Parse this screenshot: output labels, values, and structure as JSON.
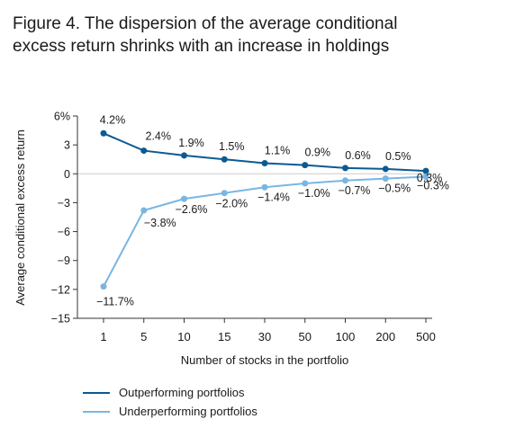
{
  "title_line1": "Figure 4. The dispersion of the average conditional",
  "title_line2": "excess return shrinks with an increase in holdings",
  "colors": {
    "outperforming": "#0b5a94",
    "underperforming": "#7ab6e2",
    "axis": "#333333",
    "zero": "#cccccc"
  },
  "chart_data": {
    "type": "line",
    "title": "Figure 4. The dispersion of the average conditional excess return shrinks with an increase in holdings",
    "xlabel": "Number of stocks in the portfolio",
    "ylabel": "Average conditional excess return",
    "categories": [
      "1",
      "5",
      "10",
      "15",
      "30",
      "50",
      "100",
      "200",
      "500"
    ],
    "ylim": [
      -15,
      6
    ],
    "yticks": [
      6,
      3,
      0,
      -3,
      -6,
      -9,
      -12,
      -15
    ],
    "ytick_labels": [
      "6%",
      "3",
      "0",
      "−3",
      "−6",
      "−9",
      "−12",
      "−15"
    ],
    "legend_position": "bottom",
    "series": [
      {
        "name": "Outperforming portfolios",
        "values": [
          4.2,
          2.4,
          1.9,
          1.5,
          1.1,
          0.9,
          0.6,
          0.5,
          0.3
        ],
        "labels": [
          "4.2%",
          "2.4%",
          "1.9%",
          "1.5%",
          "1.1%",
          "0.9%",
          "0.6%",
          "0.5%",
          "0.3%"
        ]
      },
      {
        "name": "Underperforming portfolios",
        "values": [
          -11.7,
          -3.8,
          -2.6,
          -2.0,
          -1.4,
          -1.0,
          -0.7,
          -0.5,
          -0.3
        ],
        "labels": [
          "−11.7%",
          "−3.8%",
          "−2.6%",
          "−2.0%",
          "−1.4%",
          "−1.0%",
          "−0.7%",
          "−0.5%",
          "−0.3%"
        ]
      }
    ]
  }
}
